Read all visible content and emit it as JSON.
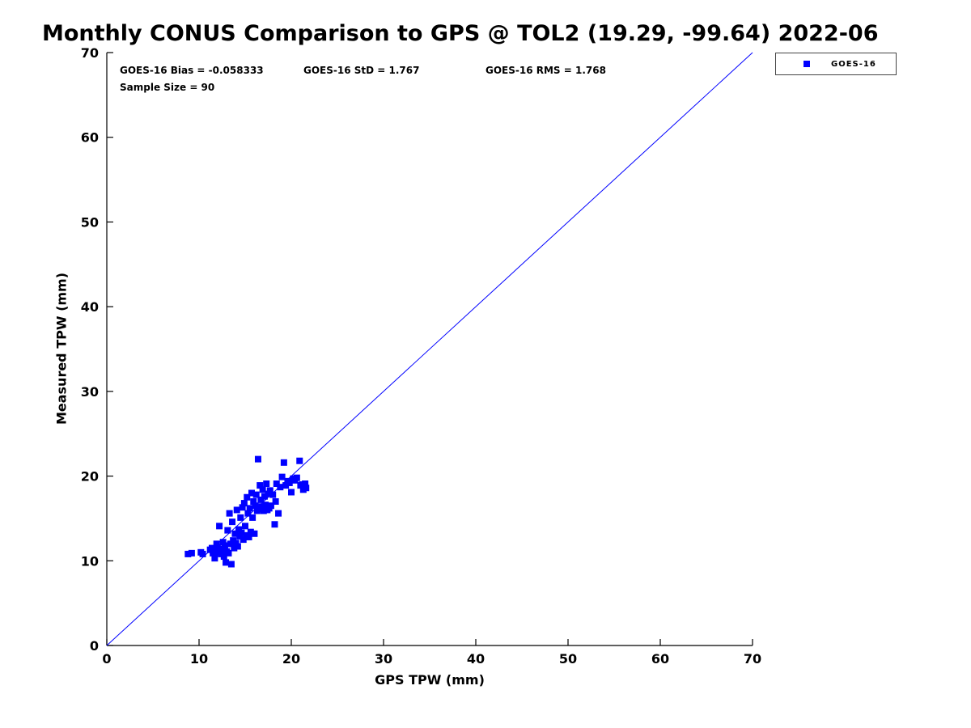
{
  "chart": {
    "title": "Monthly CONUS Comparison to GPS @ TOL2 (19.29, -99.64) 2022-06",
    "stats": {
      "bias": "GOES-16 Bias = -0.058333",
      "std": "GOES-16 StD = 1.767",
      "rms": "GOES-16 RMS = 1.768",
      "sample_size": "Sample Size = 90"
    },
    "legend": {
      "label": "GOES-16"
    },
    "xlabel": "GPS TPW (mm)",
    "ylabel": "Measured TPW (mm)"
  },
  "colors": {
    "marker": "#0000ff",
    "reference_line": "#0000ff",
    "axis": "#000000",
    "background": "#ffffff"
  },
  "chart_data": {
    "type": "scatter",
    "title": "Monthly CONUS Comparison to GPS @ TOL2 (19.29, -99.64) 2022-06",
    "xlabel": "GPS TPW (mm)",
    "ylabel": "Measured TPW (mm)",
    "xlim": [
      0,
      70
    ],
    "ylim": [
      0,
      70
    ],
    "xticks": [
      0,
      10,
      20,
      30,
      40,
      50,
      60,
      70
    ],
    "yticks": [
      0,
      10,
      20,
      30,
      40,
      50,
      60,
      70
    ],
    "grid": false,
    "legend_entries": [
      "GOES-16"
    ],
    "legend_position": "top-right-outside",
    "annotations": [
      "GOES-16 Bias = -0.058333",
      "GOES-16 StD = 1.767",
      "GOES-16 RMS = 1.768",
      "Sample Size = 90"
    ],
    "reference_line": {
      "type": "identity",
      "from": [
        0,
        0
      ],
      "to": [
        70,
        70
      ],
      "color": "#0000ff"
    },
    "series": [
      {
        "name": "GOES-16",
        "marker": "square",
        "color": "#0000ff",
        "points": [
          [
            8.8,
            10.8
          ],
          [
            9.2,
            10.9
          ],
          [
            10.2,
            11.0
          ],
          [
            10.4,
            10.8
          ],
          [
            11.2,
            11.3
          ],
          [
            11.4,
            11.5
          ],
          [
            11.5,
            10.9
          ],
          [
            11.7,
            10.3
          ],
          [
            11.8,
            11.2
          ],
          [
            11.9,
            12.0
          ],
          [
            12.0,
            11.6
          ],
          [
            12.1,
            11.0
          ],
          [
            12.2,
            14.1
          ],
          [
            12.3,
            11.4
          ],
          [
            12.4,
            10.8
          ],
          [
            12.5,
            11.2
          ],
          [
            12.6,
            12.2
          ],
          [
            12.7,
            10.5
          ],
          [
            12.8,
            11.8
          ],
          [
            12.9,
            9.8
          ],
          [
            13.0,
            11.1
          ],
          [
            13.1,
            13.6
          ],
          [
            13.2,
            10.9
          ],
          [
            13.3,
            15.6
          ],
          [
            13.4,
            12.0
          ],
          [
            13.5,
            9.6
          ],
          [
            13.6,
            14.6
          ],
          [
            13.7,
            12.4
          ],
          [
            13.8,
            11.5
          ],
          [
            13.9,
            13.2
          ],
          [
            14.0,
            12.1
          ],
          [
            14.1,
            16.0
          ],
          [
            14.2,
            11.7
          ],
          [
            14.3,
            13.7
          ],
          [
            14.4,
            12.9
          ],
          [
            14.5,
            15.1
          ],
          [
            14.6,
            13.3
          ],
          [
            14.7,
            16.3
          ],
          [
            14.8,
            12.5
          ],
          [
            14.9,
            16.8
          ],
          [
            15.0,
            14.1
          ],
          [
            15.1,
            13.0
          ],
          [
            15.2,
            17.5
          ],
          [
            15.3,
            15.6
          ],
          [
            15.4,
            12.8
          ],
          [
            15.5,
            16.2
          ],
          [
            15.6,
            13.4
          ],
          [
            15.7,
            18.0
          ],
          [
            15.8,
            15.1
          ],
          [
            15.9,
            17.0
          ],
          [
            16.0,
            13.2
          ],
          [
            16.1,
            16.5
          ],
          [
            16.2,
            17.8
          ],
          [
            16.3,
            15.9
          ],
          [
            16.4,
            22.0
          ],
          [
            16.5,
            16.1
          ],
          [
            16.6,
            18.9
          ],
          [
            16.7,
            17.2
          ],
          [
            16.8,
            16.4
          ],
          [
            16.9,
            18.4
          ],
          [
            17.0,
            15.9
          ],
          [
            17.1,
            17.6
          ],
          [
            17.2,
            16.6
          ],
          [
            17.3,
            19.1
          ],
          [
            17.4,
            16.0
          ],
          [
            17.5,
            17.9
          ],
          [
            17.6,
            16.2
          ],
          [
            17.7,
            18.3
          ],
          [
            17.8,
            16.5
          ],
          [
            18.0,
            17.8
          ],
          [
            18.2,
            14.3
          ],
          [
            18.3,
            17.0
          ],
          [
            18.4,
            19.1
          ],
          [
            18.6,
            15.6
          ],
          [
            18.8,
            18.7
          ],
          [
            19.0,
            19.9
          ],
          [
            19.2,
            21.6
          ],
          [
            19.4,
            18.9
          ],
          [
            19.6,
            19.4
          ],
          [
            19.8,
            19.2
          ],
          [
            20.0,
            18.1
          ],
          [
            20.2,
            19.7
          ],
          [
            20.4,
            19.5
          ],
          [
            20.6,
            19.8
          ],
          [
            20.9,
            21.8
          ],
          [
            21.0,
            18.9
          ],
          [
            21.2,
            19.0
          ],
          [
            21.3,
            18.4
          ],
          [
            21.5,
            19.1
          ],
          [
            21.6,
            18.6
          ]
        ]
      }
    ]
  }
}
